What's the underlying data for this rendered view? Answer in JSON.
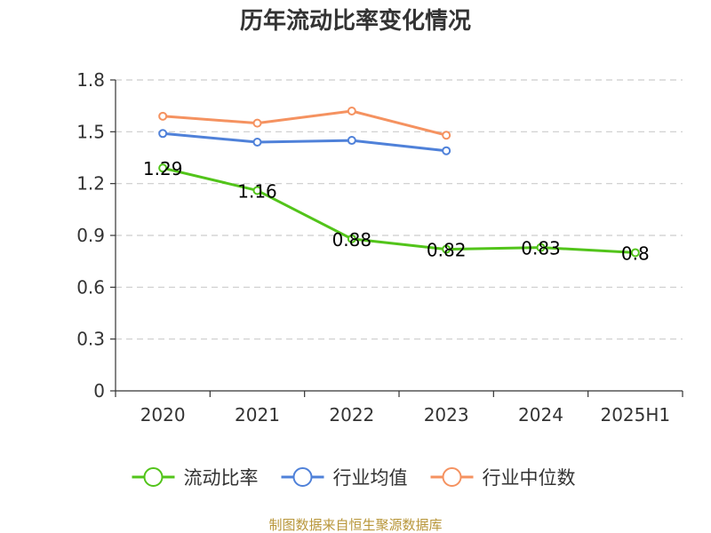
{
  "chart_data": {
    "type": "line",
    "title": "历年流动比率变化情况",
    "categories": [
      "2020",
      "2021",
      "2022",
      "2023",
      "2024",
      "2025H1"
    ],
    "ylim": [
      0,
      1.8
    ],
    "yticks": [
      "0",
      "0.3",
      "0.6",
      "0.9",
      "1.2",
      "1.5",
      "1.8"
    ],
    "grid": true,
    "legend_position": "bottom",
    "series": [
      {
        "name": "流动比率",
        "color": "#52c41a",
        "values": [
          1.29,
          1.16,
          0.88,
          0.82,
          0.83,
          0.8
        ],
        "labels": [
          "1.29",
          "1.16",
          "0.88",
          "0.82",
          "0.83",
          "0.8"
        ]
      },
      {
        "name": "行业均值",
        "color": "#4f81d9",
        "values": [
          1.49,
          1.44,
          1.45,
          1.39,
          null,
          null
        ]
      },
      {
        "name": "行业中位数",
        "color": "#f59260",
        "values": [
          1.59,
          1.55,
          1.62,
          1.48,
          null,
          null
        ]
      }
    ]
  },
  "footer": {
    "source": "制图数据来自恒生聚源数据库"
  }
}
